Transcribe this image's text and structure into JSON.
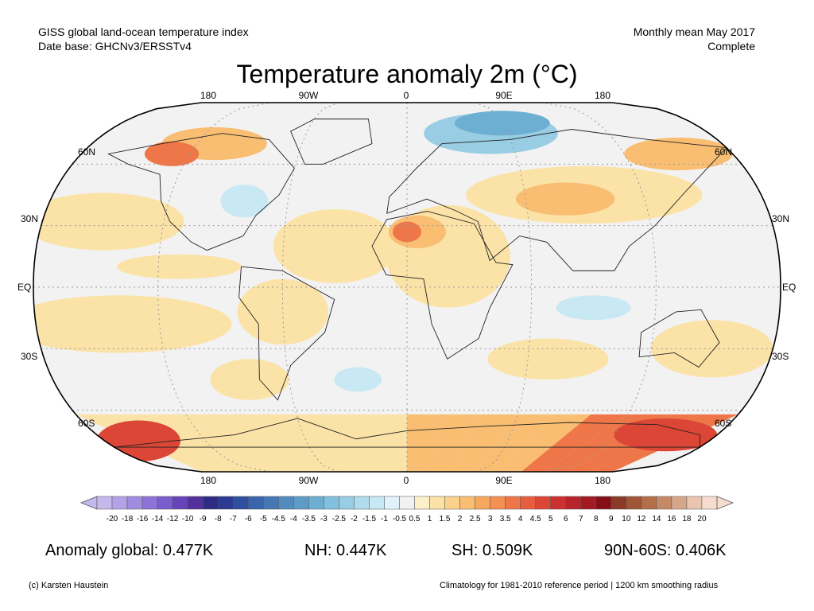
{
  "header": {
    "left_line1": "GISS global land-ocean temperature index",
    "left_line2": "Date base: GHCNv3/ERSSTv4",
    "right_line1": "Monthly mean May 2017",
    "right_line2": "Complete"
  },
  "title": "Temperature anomaly 2m (°C)",
  "lon_labels": [
    "180",
    "90W",
    "0",
    "90E",
    "180"
  ],
  "lat_labels": [
    "60N",
    "30N",
    "EQ",
    "30S",
    "60S"
  ],
  "colorbar": {
    "labels": [
      "-20",
      "-18",
      "-16",
      "-14",
      "-12",
      "-10",
      "-9",
      "-8",
      "-7",
      "-6",
      "-5",
      "-4.5",
      "-4",
      "-3.5",
      "-3",
      "-2.5",
      "-2",
      "-1.5",
      "-1",
      "-0.5",
      "0.5",
      "1",
      "1.5",
      "2",
      "2.5",
      "3",
      "3.5",
      "4",
      "4.5",
      "5",
      "6",
      "7",
      "8",
      "9",
      "10",
      "12",
      "14",
      "16",
      "18",
      "20"
    ],
    "colors": [
      "#c4b8ec",
      "#b4a2e6",
      "#a28ce0",
      "#8e72d6",
      "#7a5ccc",
      "#6544ba",
      "#52309e",
      "#2e2b85",
      "#2c3a94",
      "#2f4f9e",
      "#3a64ab",
      "#4577b4",
      "#528bbe",
      "#5d9cc6",
      "#6dafd2",
      "#82c0dd",
      "#98cde4",
      "#b0dcec",
      "#c8e8f4",
      "#e0f2fa",
      "#f2f2f2",
      "#fbf0c8",
      "#fbe2a6",
      "#fbd28c",
      "#f9be72",
      "#f6a85e",
      "#f39052",
      "#ee7648",
      "#e65e3e",
      "#dc4636",
      "#cc3030",
      "#b8242a",
      "#a21a22",
      "#860e16",
      "#8a3a26",
      "#a05636",
      "#b46e4a",
      "#c48a66",
      "#d6a68a",
      "#eac4ae",
      "#f6dcce"
    ]
  },
  "stats": {
    "global": "Anomaly global: 0.477K",
    "nh": "NH: 0.447K",
    "sh": "SH: 0.509K",
    "polar": "90N-60S: 0.406K"
  },
  "footer": {
    "credit": "(c) Karsten Haustein",
    "note": "Climatology for 1981-2010 reference period | 1200 km smoothing radius"
  },
  "map_colors": {
    "neutral": "#f2f2f2",
    "warm_light": "#fbe2a6",
    "warm_mid": "#f9be72",
    "warm_strong": "#ee7648",
    "warm_deep": "#dc4636",
    "cool_light": "#c8e8f4",
    "cool_mid": "#98cde4",
    "cool_strong": "#6dafd2"
  }
}
